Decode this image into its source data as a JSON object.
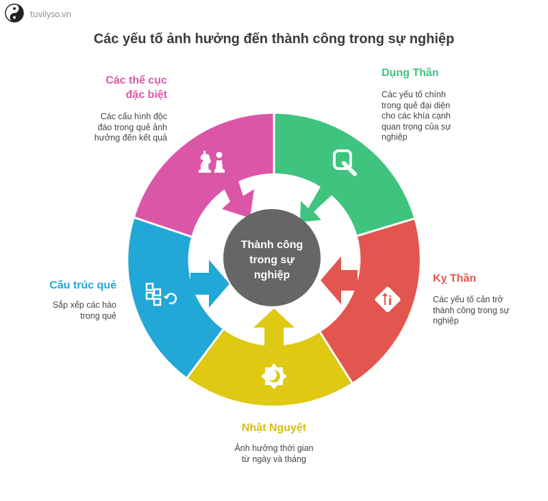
{
  "logo": {
    "text": "tuvilyso.vn",
    "icon": "yin-yang-icon"
  },
  "title": "Các yếu tố ảnh hưởng đến thành công trong sự nghiệp",
  "center": {
    "line1": "Thành công",
    "line2": "trong sự",
    "line3": "nghiệp"
  },
  "segments": {
    "dung_than": {
      "label": "Dụng Thần",
      "desc": [
        "Các yếu tố chính",
        "trong quẻ đại diện",
        "cho các khía cạnh",
        "quan trọng của sự",
        "nghiệp"
      ],
      "color": "#3fc47f",
      "icon": "magnifier-icon"
    },
    "ky_than": {
      "label": "Kỵ Thần",
      "desc": [
        "Các yếu tố cản trở",
        "thành công trong sự",
        "nghiệp"
      ],
      "color": "#e3564f",
      "icon": "direction-sign-icon"
    },
    "nhat_nguyet": {
      "label": "Nhật Nguyệt",
      "desc": [
        "Ảnh hưởng thời gian",
        "từ ngày và tháng"
      ],
      "color": "#dfc913",
      "icon": "sun-moon-icon"
    },
    "cau_truc_que": {
      "label": "Cấu trúc quẻ",
      "desc": [
        "Sắp xếp các hào",
        "trong quẻ"
      ],
      "color": "#22a8d6",
      "icon": "puzzle-blocks-icon"
    },
    "the_cuc": {
      "label_line1": "Các thế cục",
      "label_line2": "đặc biệt",
      "desc": [
        "Các cấu hình độc",
        "đáo trong quẻ ảnh",
        "hưởng đến kết quả"
      ],
      "color": "#dc56a8",
      "icon": "chess-pieces-icon"
    }
  },
  "center_color": "#666666"
}
